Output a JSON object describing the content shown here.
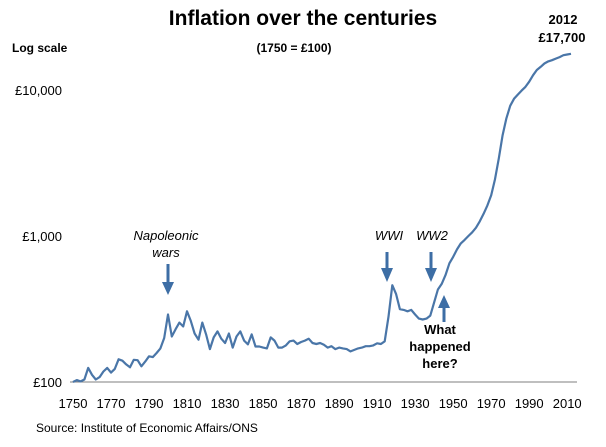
{
  "chart_data": {
    "type": "line",
    "title": "Inflation over the centuries",
    "subtitle": "(1750 = £100)",
    "ylabel": "Log scale",
    "y_scale": "log",
    "ylim": [
      100,
      25000
    ],
    "xlim": [
      1750,
      2012
    ],
    "y_ticks": [
      100,
      1000,
      10000
    ],
    "y_tick_labels": [
      "£100",
      "£1,000",
      "£10,000"
    ],
    "x_ticks": [
      1750,
      1770,
      1790,
      1810,
      1830,
      1850,
      1870,
      1890,
      1910,
      1930,
      1950,
      1970,
      1990,
      2010
    ],
    "x_tick_labels": [
      "1750",
      "1770",
      "1790",
      "1810",
      "1830",
      "1850",
      "1870",
      "1890",
      "1910",
      "1930",
      "1950",
      "1970",
      "1990",
      "2010"
    ],
    "grid": false,
    "color": "#4a76a8",
    "end_label": {
      "year": "2012",
      "value_text": "£17,700"
    },
    "annotations": [
      {
        "text_lines": [
          "Napoleonic",
          "wars"
        ],
        "style": "italic",
        "x": 1800,
        "direction": "down"
      },
      {
        "text_lines": [
          "WWI"
        ],
        "style": "italic",
        "x": 1918,
        "direction": "down"
      },
      {
        "text_lines": [
          "WW2"
        ],
        "style": "italic",
        "x": 1940,
        "direction": "down"
      },
      {
        "text_lines": [
          "What",
          "happened",
          "here?"
        ],
        "style": "bold",
        "x": 1945,
        "direction": "up"
      }
    ],
    "x": [
      1750,
      1752,
      1754,
      1756,
      1758,
      1760,
      1762,
      1764,
      1766,
      1768,
      1770,
      1772,
      1774,
      1776,
      1778,
      1780,
      1782,
      1784,
      1786,
      1788,
      1790,
      1792,
      1794,
      1796,
      1798,
      1800,
      1802,
      1804,
      1806,
      1808,
      1810,
      1812,
      1814,
      1816,
      1818,
      1820,
      1822,
      1824,
      1826,
      1828,
      1830,
      1832,
      1834,
      1836,
      1838,
      1840,
      1842,
      1844,
      1846,
      1848,
      1850,
      1852,
      1854,
      1856,
      1858,
      1860,
      1862,
      1864,
      1866,
      1868,
      1870,
      1872,
      1874,
      1876,
      1878,
      1880,
      1882,
      1884,
      1886,
      1888,
      1890,
      1892,
      1894,
      1896,
      1898,
      1900,
      1902,
      1904,
      1906,
      1908,
      1910,
      1912,
      1914,
      1916,
      1918,
      1920,
      1922,
      1924,
      1926,
      1928,
      1930,
      1932,
      1934,
      1936,
      1938,
      1940,
      1942,
      1944,
      1946,
      1948,
      1950,
      1952,
      1954,
      1956,
      1958,
      1960,
      1962,
      1964,
      1966,
      1968,
      1970,
      1972,
      1974,
      1976,
      1978,
      1980,
      1982,
      1984,
      1986,
      1988,
      1990,
      1992,
      1994,
      1996,
      1998,
      2000,
      2002,
      2004,
      2006,
      2008,
      2010,
      2012
    ],
    "values": [
      100,
      103,
      101,
      104,
      125,
      112,
      104,
      108,
      118,
      125,
      116,
      123,
      143,
      140,
      132,
      126,
      142,
      141,
      128,
      138,
      150,
      148,
      158,
      170,
      200,
      290,
      205,
      230,
      255,
      240,
      305,
      262,
      215,
      195,
      255,
      212,
      168,
      202,
      222,
      198,
      185,
      215,
      172,
      205,
      222,
      192,
      181,
      212,
      175,
      175,
      172,
      170,
      202,
      192,
      172,
      172,
      178,
      190,
      192,
      182,
      188,
      192,
      198,
      185,
      182,
      185,
      180,
      172,
      176,
      168,
      172,
      170,
      168,
      162,
      166,
      170,
      172,
      176,
      176,
      178,
      184,
      182,
      190,
      280,
      460,
      400,
      315,
      312,
      305,
      312,
      290,
      272,
      268,
      272,
      285,
      350,
      430,
      470,
      540,
      650,
      720,
      810,
      890,
      940,
      1000,
      1060,
      1140,
      1260,
      1420,
      1620,
      1900,
      2450,
      3400,
      4900,
      6400,
      7800,
      8700,
      9300,
      9900,
      10500,
      11400,
      12600,
      13700,
      14400,
      15200,
      15700,
      16000,
      16400,
      16800,
      17300,
      17500,
      17700
    ]
  },
  "source_text": "Source: Institute of Economic Affairs/ONS"
}
